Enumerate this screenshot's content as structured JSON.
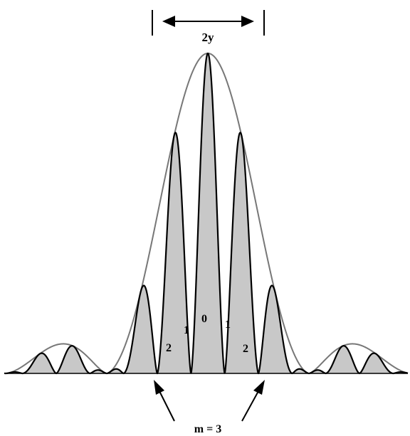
{
  "diagram": {
    "type": "double-slit interference pattern with single-slit diffraction envelope",
    "width_label": "2y",
    "order_labels": {
      "center": "0",
      "first_left": "1",
      "first_right": "1",
      "second_left": "2",
      "second_right": "2"
    },
    "missing_order_label": "m = 3",
    "colors": {
      "fringe_fill": "#c8c8c8",
      "fringe_stroke": "#000000",
      "envelope_stroke": "#777777",
      "annotation": "#000000"
    }
  }
}
